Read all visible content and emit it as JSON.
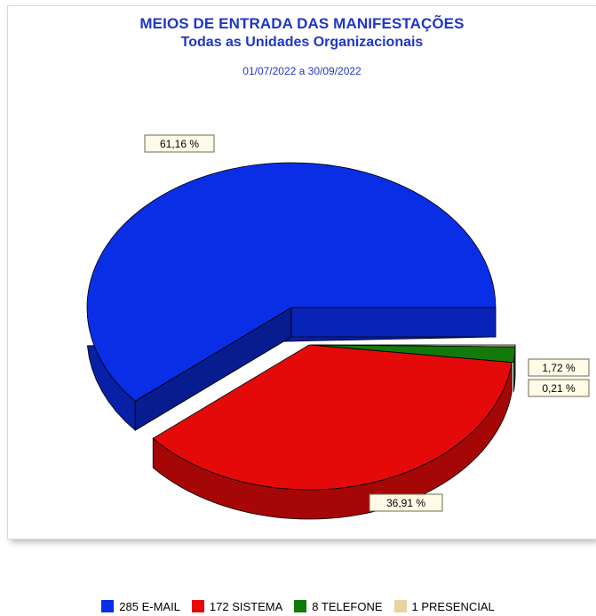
{
  "chart_data": {
    "type": "pie",
    "title": "MEIOS DE ENTRADA DAS MANIFESTAÇÕES",
    "subtitle": "Todas as Unidades Organizacionais",
    "period": "01/07/2022 a 30/09/2022",
    "categories": [
      "E-MAIL",
      "SISTEMA",
      "TELEFONE",
      "PRESENCIAL"
    ],
    "values": [
      285,
      172,
      8,
      1
    ],
    "percent_labels": [
      "61,16 %",
      "36,91 %",
      "1,72 %",
      "0,21 %"
    ],
    "legend_labels": [
      "285 E-MAIL",
      "172 SISTEMA",
      "8 TELEFONE",
      "1 PRESENCIAL"
    ],
    "colors": [
      "#0a2de6",
      "#e50a0a",
      "#117a0a",
      "#e8d3a0"
    ],
    "exploded": [
      "E-MAIL",
      "SISTEMA"
    ],
    "legend_position": "bottom"
  }
}
